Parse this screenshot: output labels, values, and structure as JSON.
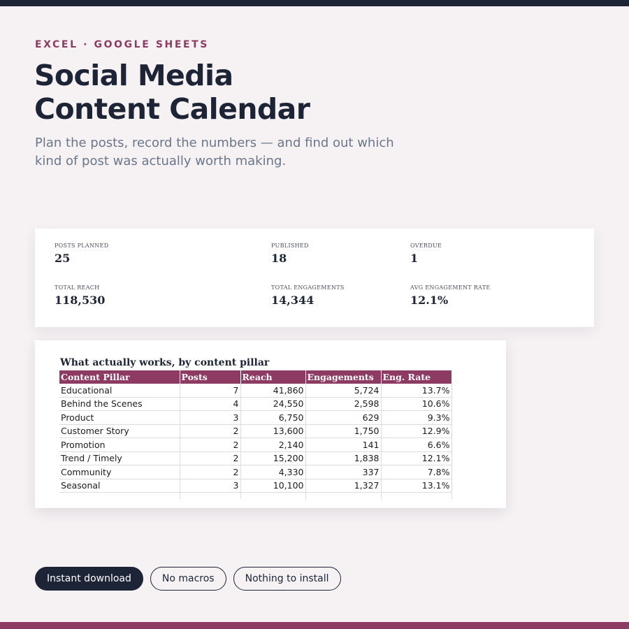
{
  "header": {
    "eyebrow": "EXCEL · GOOGLE SHEETS",
    "title_line1": "Social Media",
    "title_line2": "Content Calendar",
    "subtitle": "Plan the posts, record the numbers — and find out which kind of post was actually worth making."
  },
  "stats": {
    "posts_planned": {
      "label": "POSTS PLANNED",
      "value": "25"
    },
    "published": {
      "label": "PUBLISHED",
      "value": "18"
    },
    "overdue": {
      "label": "OVERDUE",
      "value": "1"
    },
    "total_reach": {
      "label": "TOTAL REACH",
      "value": "118,530"
    },
    "total_engagements": {
      "label": "TOTAL ENGAGEMENTS",
      "value": "14,344"
    },
    "avg_engagement_rate": {
      "label": "AVG ENGAGEMENT RATE",
      "value": "12.1%"
    }
  },
  "pillar_table": {
    "title": "What actually works, by content pillar",
    "columns": [
      "Content Pillar",
      "Posts",
      "Reach",
      "Engagements",
      "Eng. Rate"
    ],
    "rows": [
      [
        "Educational",
        "7",
        "41,860",
        "5,724",
        "13.7%"
      ],
      [
        "Behind the Scenes",
        "4",
        "24,550",
        "2,598",
        "10.6%"
      ],
      [
        "Product",
        "3",
        "6,750",
        "629",
        "9.3%"
      ],
      [
        "Customer Story",
        "2",
        "13,600",
        "1,750",
        "12.9%"
      ],
      [
        "Promotion",
        "2",
        "2,140",
        "141",
        "6.6%"
      ],
      [
        "Trend / Timely",
        "2",
        "15,200",
        "1,838",
        "12.1%"
      ],
      [
        "Community",
        "2",
        "4,330",
        "337",
        "7.8%"
      ],
      [
        "Seasonal",
        "3",
        "10,100",
        "1,327",
        "13.1%"
      ]
    ]
  },
  "badges": [
    "Instant download",
    "No macros",
    "Nothing to install"
  ],
  "colors": {
    "accent": "#8e3b63",
    "navy": "#1c2436",
    "background": "#f6f2f4"
  }
}
